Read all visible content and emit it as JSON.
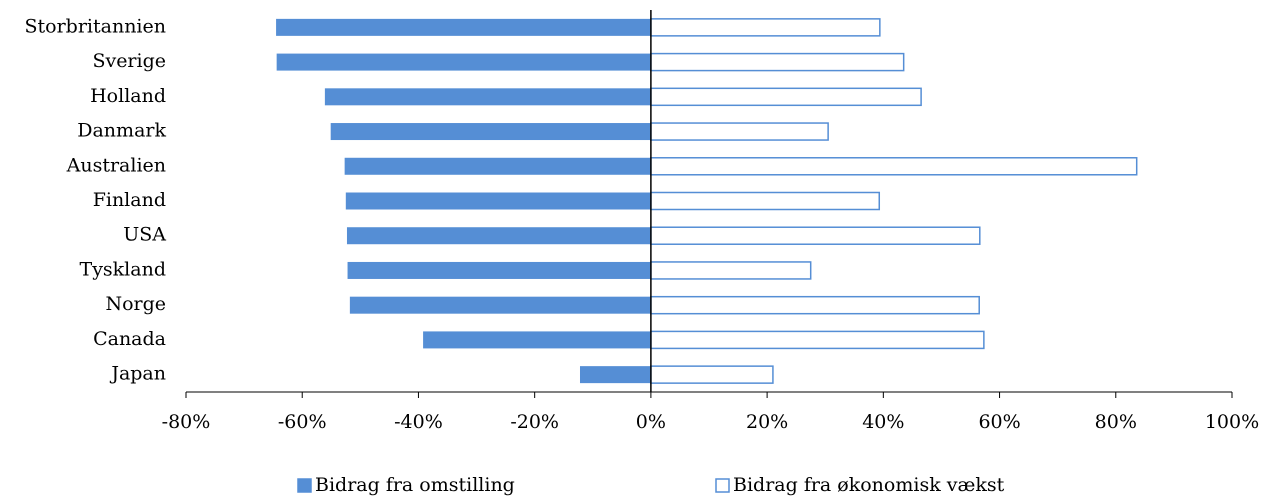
{
  "chart_data": {
    "type": "hbar",
    "categories": [
      "Storbritannien",
      "Sverige",
      "Holland",
      "Danmark",
      "Australien",
      "Finland",
      "USA",
      "Tyskland",
      "Norge",
      "Canada",
      "Japan"
    ],
    "series": [
      {
        "name": "Bidrag fra omstilling",
        "color": "#558ed5",
        "fill": "solid",
        "values": [
          -64.5,
          -64.4,
          -56.1,
          -55.1,
          -52.7,
          -52.5,
          -52.3,
          -52.2,
          -51.8,
          -39.2,
          -12.2
        ]
      },
      {
        "name": "Bidrag fra økonomisk vækst",
        "color": "#558ed5",
        "fill": "hollow",
        "values": [
          39.4,
          43.5,
          46.5,
          30.5,
          83.6,
          39.3,
          56.6,
          27.5,
          56.5,
          57.3,
          21
        ]
      }
    ],
    "xlim": [
      -80,
      100
    ],
    "xticks": [
      {
        "value": -80,
        "label": "-80%"
      },
      {
        "value": -60,
        "label": "-60%"
      },
      {
        "value": -40,
        "label": "-40%"
      },
      {
        "value": -20,
        "label": "-20%"
      },
      {
        "value": 0,
        "label": "0%"
      },
      {
        "value": 20,
        "label": "20%"
      },
      {
        "value": 40,
        "label": "40%"
      },
      {
        "value": 60,
        "label": "60%"
      },
      {
        "value": 80,
        "label": "80%"
      },
      {
        "value": 100,
        "label": "100%"
      }
    ],
    "grid": false,
    "legend": "bottom"
  }
}
